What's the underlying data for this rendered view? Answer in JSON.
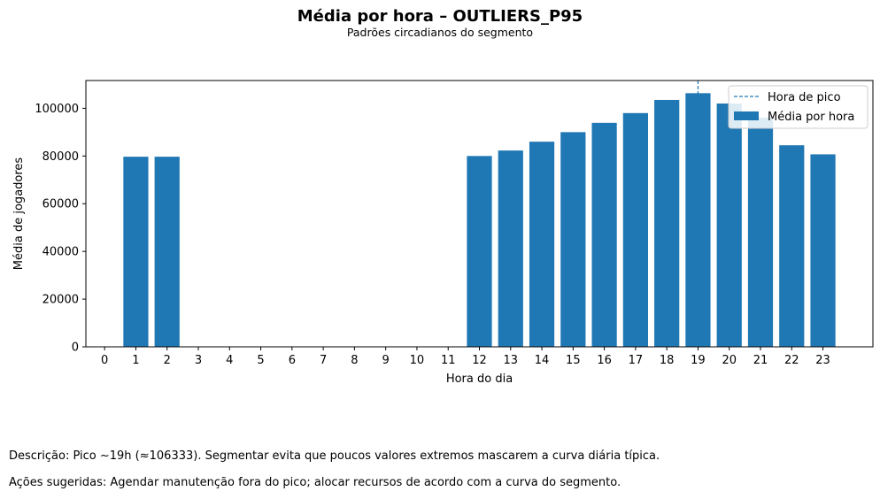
{
  "figure": {
    "title": "Média por hora – OUTLIERS_P95",
    "subtitle": "Padrões circadianos do segmento"
  },
  "chart_data": {
    "type": "bar",
    "title": "Média por hora – OUTLIERS_P95",
    "subtitle": "Padrões circadianos do segmento",
    "xlabel": "Hora do dia",
    "ylabel": "Média de jogadores",
    "categories": [
      "0",
      "1",
      "2",
      "3",
      "4",
      "5",
      "6",
      "7",
      "8",
      "9",
      "10",
      "11",
      "12",
      "13",
      "14",
      "15",
      "16",
      "17",
      "18",
      "19",
      "20",
      "21",
      "22",
      "23"
    ],
    "values": [
      0,
      79700,
      79700,
      0,
      0,
      0,
      0,
      0,
      0,
      0,
      0,
      0,
      80000,
      82300,
      86000,
      90000,
      93900,
      98000,
      103500,
      106333,
      102000,
      96000,
      84500,
      80700
    ],
    "series_name": "Média por hora",
    "bar_color": "#1f77b4",
    "ylim": [
      0,
      111650
    ],
    "yticks": [
      0,
      20000,
      40000,
      60000,
      80000,
      100000
    ],
    "peak": {
      "hour": 19,
      "label": "Hora de pico",
      "color": "#1f77b4",
      "style": "dashed"
    },
    "legend": {
      "placement": "top-right",
      "entries": [
        {
          "label": "Hora de pico",
          "kind": "dashed-line"
        },
        {
          "label": "Média por hora",
          "kind": "bar"
        }
      ]
    },
    "grid": false
  },
  "notes": {
    "description": "Descrição: Pico ~19h (≈106333). Segmentar evita que poucos valores extremos mascarem a curva diária típica.",
    "actions": "Ações sugeridas: Agendar manutenção fora do pico; alocar recursos de acordo com a curva do segmento."
  }
}
